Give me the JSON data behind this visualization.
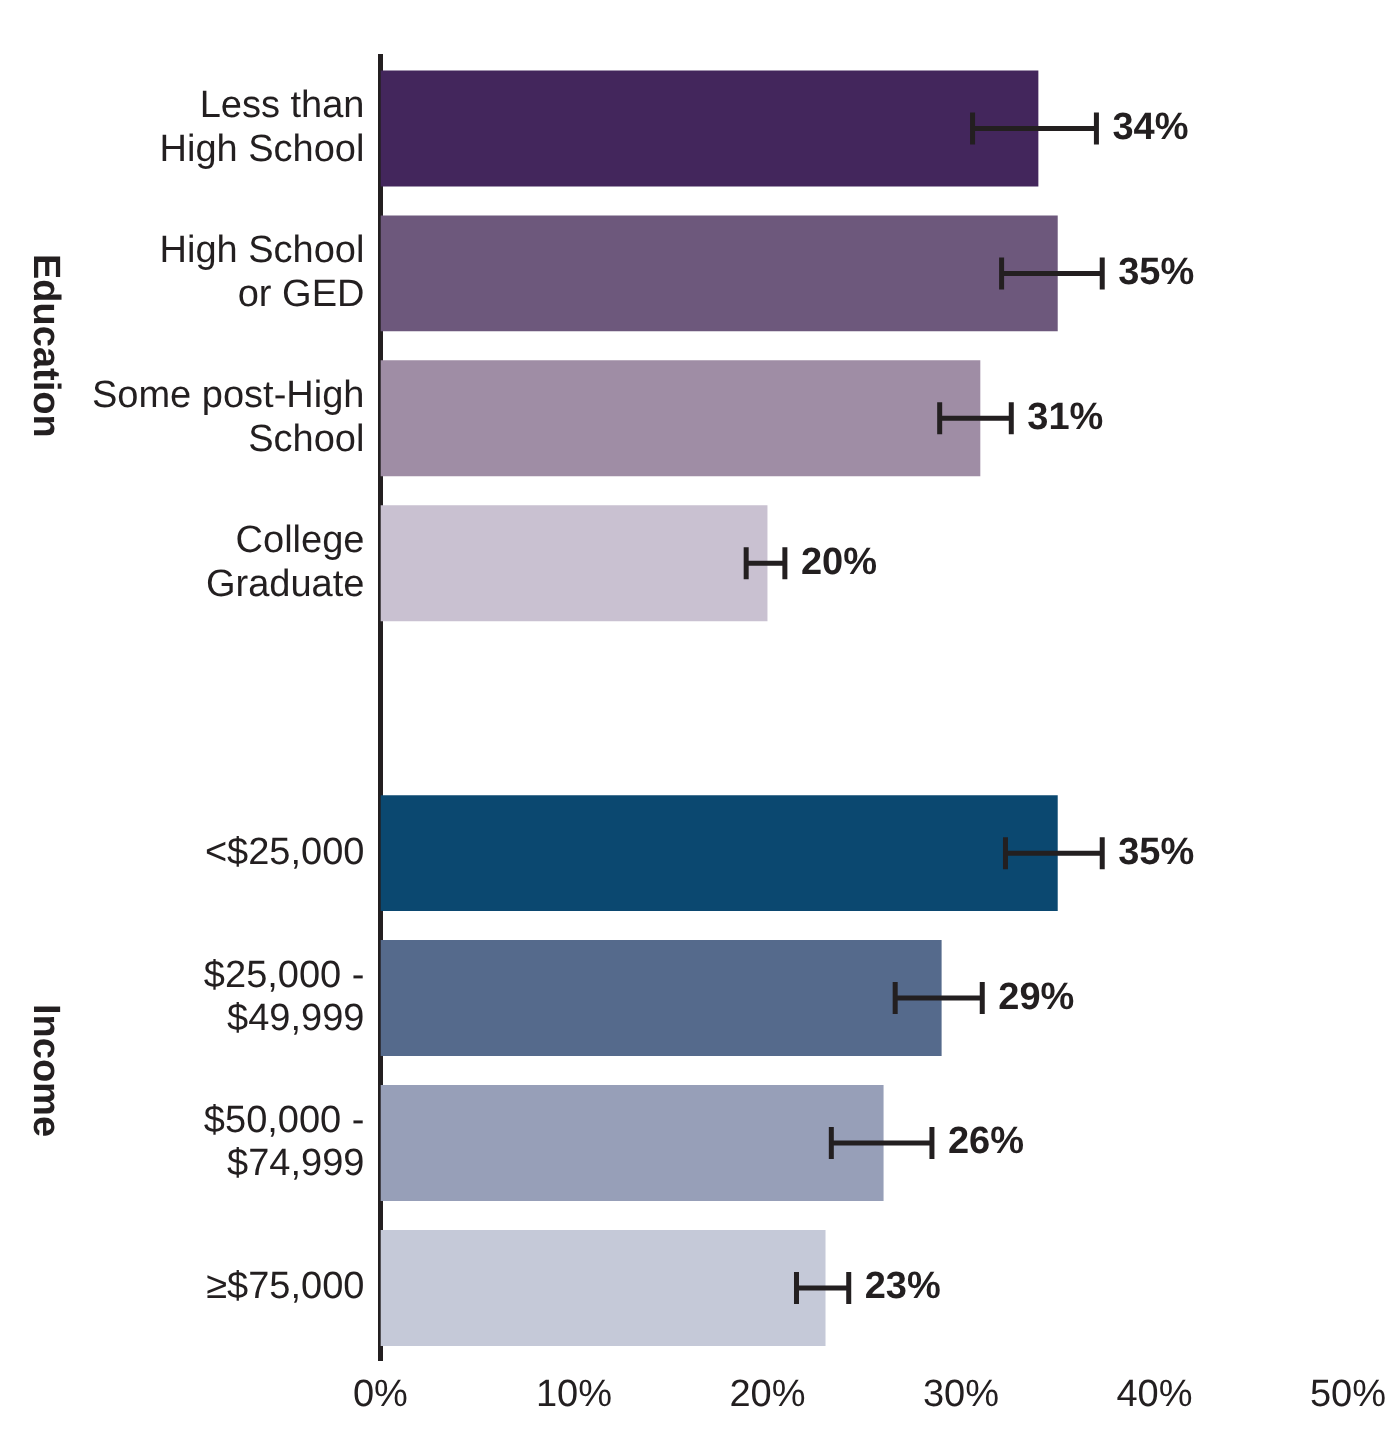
{
  "chart_data": {
    "type": "bar",
    "orientation": "horizontal",
    "categories": [
      "Less than High School",
      "High School or GED",
      "Some post-High School",
      "College Graduate",
      null,
      "<$25,000",
      "$25,000 - $49,999",
      "$50,000 - $74,999",
      "≥$75,000"
    ],
    "values": [
      34,
      35,
      31,
      20,
      null,
      35,
      29,
      26,
      23
    ],
    "colors": [
      "#43265c",
      "#6d587c",
      "#9f8da5",
      "#c9c1d1",
      "#ffffff",
      "#0b4870",
      "#556a8c",
      "#979fb8",
      "#c5c9d8"
    ],
    "errors": [
      [
        30.6,
        37.0
      ],
      [
        32.1,
        37.3
      ],
      [
        28.9,
        32.6
      ],
      [
        18.9,
        20.9
      ],
      null,
      [
        32.3,
        37.3
      ],
      [
        26.6,
        31.1
      ],
      [
        23.3,
        28.5
      ],
      [
        21.5,
        24.2
      ]
    ],
    "value_labels": [
      "34%",
      "35%",
      "31%",
      "20%",
      null,
      "35%",
      "29%",
      "26%",
      "23%"
    ],
    "xlim": [
      0,
      50
    ],
    "xticks": [
      {
        "value": 0,
        "label": "0%"
      },
      {
        "value": 10,
        "label": "10%"
      },
      {
        "value": 20,
        "label": "20%"
      },
      {
        "value": 30,
        "label": "30%"
      },
      {
        "value": 40,
        "label": "40%"
      },
      {
        "value": 50,
        "label": "50%"
      }
    ],
    "annotations": [
      "Education",
      "Income"
    ],
    "grid": false,
    "legend": false
  }
}
